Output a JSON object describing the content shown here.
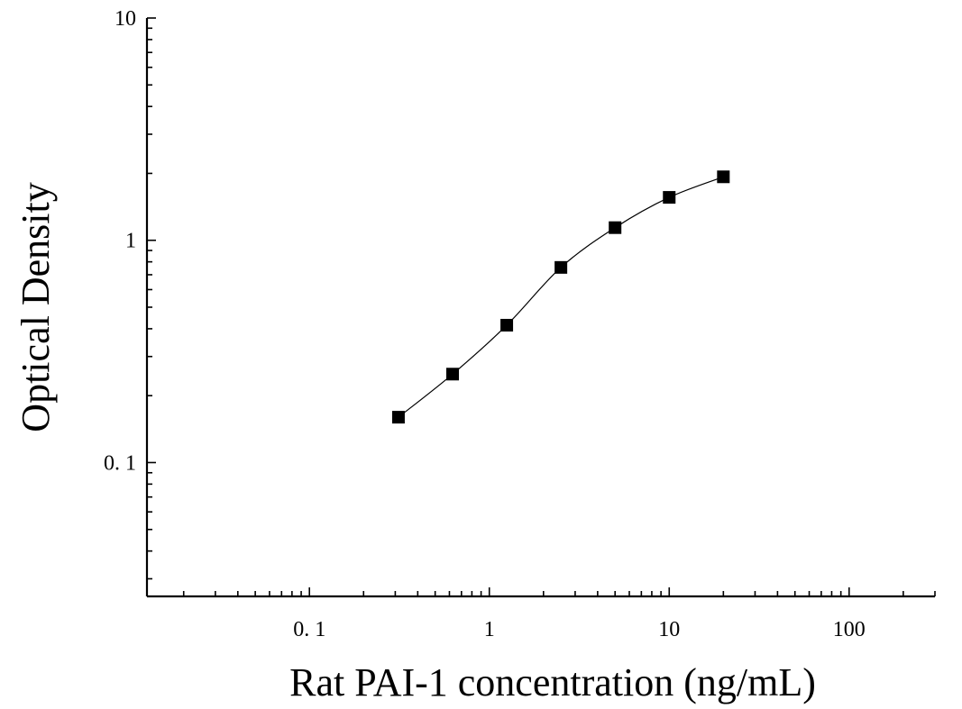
{
  "chart_data": {
    "type": "scatter",
    "title": "",
    "xlabel": "Rat PAI-1 concentration (ng/mL)",
    "ylabel": "Optical Density",
    "xscale": "log",
    "yscale": "log",
    "xlim": [
      0.0125,
      300
    ],
    "ylim": [
      0.025,
      10
    ],
    "xticks": [
      {
        "value": 0.1,
        "label": "0. 1"
      },
      {
        "value": 1,
        "label": "1"
      },
      {
        "value": 10,
        "label": "10"
      },
      {
        "value": 100,
        "label": "100"
      }
    ],
    "yticks": [
      {
        "value": 0.1,
        "label": "0. 1"
      },
      {
        "value": 1,
        "label": "1"
      },
      {
        "value": 10,
        "label": "10"
      }
    ],
    "grid": false,
    "legend": "none",
    "marker": "square",
    "fit_curve": true,
    "color": "#000000",
    "series": [
      {
        "x": [
          0.3125,
          0.625,
          1.25,
          2.5,
          5,
          10,
          20
        ],
        "y": [
          0.16,
          0.25,
          0.415,
          0.755,
          1.14,
          1.56,
          1.93
        ]
      }
    ]
  }
}
